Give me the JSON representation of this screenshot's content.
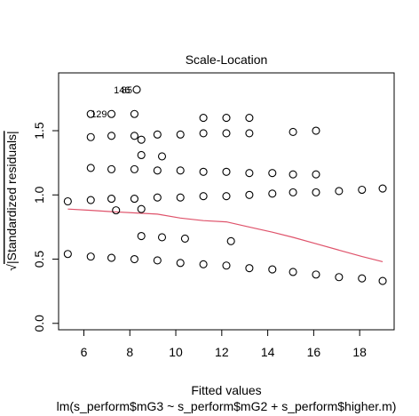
{
  "chart_data": {
    "type": "scatter",
    "title": "Scale-Location",
    "xlabel": "Fitted values",
    "ylabel": "√|Standardized residuals|",
    "ylabel_radical": "√",
    "ylabel_text": "|Standardized residuals|",
    "subtitle": "lm(s_perform$mG3 ~ s_perform$mG2 + s_perform$higher.m)",
    "xlim": [
      4.9,
      19.5
    ],
    "ylim": [
      -0.05,
      1.95
    ],
    "x_ticks": [
      6,
      8,
      10,
      12,
      14,
      16,
      18
    ],
    "x_tick_labels": [
      "6",
      "8",
      "10",
      "12",
      "14",
      "16",
      "18"
    ],
    "y_ticks": [
      0.0,
      0.5,
      1.0,
      1.5
    ],
    "y_tick_labels": [
      "0.0",
      "0.5",
      "1.0",
      "1.5"
    ],
    "grid": false,
    "point_color": "#000000",
    "smooth_color": "#df536b",
    "points": [
      [
        5.3,
        0.95
      ],
      [
        5.3,
        0.54
      ],
      [
        6.3,
        0.96
      ],
      [
        6.3,
        1.21
      ],
      [
        6.3,
        1.45
      ],
      [
        6.3,
        1.63
      ],
      [
        6.3,
        0.52
      ],
      [
        7.2,
        0.97
      ],
      [
        7.2,
        1.2
      ],
      [
        7.2,
        1.46
      ],
      [
        7.2,
        1.63
      ],
      [
        7.2,
        0.51
      ],
      [
        7.4,
        0.88
      ],
      [
        8.2,
        0.97
      ],
      [
        8.2,
        1.2
      ],
      [
        8.2,
        1.46
      ],
      [
        8.2,
        1.63
      ],
      [
        8.2,
        0.5
      ],
      [
        8.3,
        1.82
      ],
      [
        8.5,
        1.31
      ],
      [
        8.5,
        1.43
      ],
      [
        8.5,
        0.89
      ],
      [
        8.5,
        0.68
      ],
      [
        9.2,
        0.98
      ],
      [
        9.2,
        1.19
      ],
      [
        9.2,
        1.47
      ],
      [
        9.2,
        0.49
      ],
      [
        9.4,
        1.3
      ],
      [
        9.4,
        0.67
      ],
      [
        10.2,
        0.98
      ],
      [
        10.2,
        1.19
      ],
      [
        10.2,
        1.47
      ],
      [
        10.2,
        0.47
      ],
      [
        10.4,
        0.66
      ],
      [
        11.2,
        0.99
      ],
      [
        11.2,
        1.18
      ],
      [
        11.2,
        1.48
      ],
      [
        11.2,
        1.6
      ],
      [
        11.2,
        0.46
      ],
      [
        12.2,
        0.99
      ],
      [
        12.2,
        1.18
      ],
      [
        12.2,
        1.48
      ],
      [
        12.2,
        1.6
      ],
      [
        12.2,
        0.45
      ],
      [
        12.4,
        0.64
      ],
      [
        13.2,
        1.0
      ],
      [
        13.2,
        1.17
      ],
      [
        13.2,
        1.48
      ],
      [
        13.2,
        1.6
      ],
      [
        13.2,
        0.43
      ],
      [
        14.2,
        1.01
      ],
      [
        14.2,
        1.17
      ],
      [
        14.2,
        0.42
      ],
      [
        15.1,
        1.02
      ],
      [
        15.1,
        1.16
      ],
      [
        15.1,
        1.49
      ],
      [
        15.1,
        0.4
      ],
      [
        16.1,
        1.02
      ],
      [
        16.1,
        1.16
      ],
      [
        16.1,
        1.5
      ],
      [
        16.1,
        0.38
      ],
      [
        17.1,
        1.03
      ],
      [
        17.1,
        0.36
      ],
      [
        18.1,
        1.04
      ],
      [
        18.1,
        0.35
      ],
      [
        19.0,
        1.05
      ],
      [
        19.0,
        0.33
      ]
    ],
    "smooth_line": [
      [
        5.3,
        0.89
      ],
      [
        6.3,
        0.88
      ],
      [
        7.2,
        0.87
      ],
      [
        8.2,
        0.86
      ],
      [
        9.2,
        0.85
      ],
      [
        10.2,
        0.82
      ],
      [
        11.2,
        0.8
      ],
      [
        12.2,
        0.79
      ],
      [
        13.2,
        0.75
      ],
      [
        14.2,
        0.71
      ],
      [
        15.1,
        0.67
      ],
      [
        16.1,
        0.62
      ],
      [
        17.1,
        0.57
      ],
      [
        18.1,
        0.52
      ],
      [
        19.0,
        0.48
      ]
    ],
    "point_labels": [
      {
        "text": "129",
        "x": 7.2,
        "y": 1.63
      },
      {
        "text": "146",
        "x": 8.2,
        "y": 1.82
      },
      {
        "text": "85",
        "x": 8.3,
        "y": 1.82
      }
    ]
  }
}
